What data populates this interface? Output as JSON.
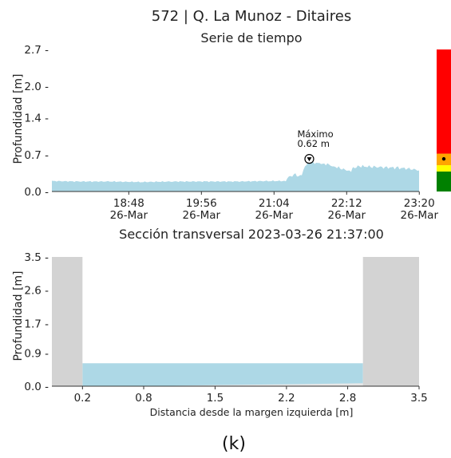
{
  "caption": "(k)",
  "chart_data": [
    {
      "type": "area",
      "title": "572 | Q. La Munoz - Ditaires",
      "subtitle": "Serie de tiempo",
      "xlabel": "",
      "ylabel": "Profundidad [m]",
      "ylim": [
        0,
        2.7
      ],
      "yticks": [
        0.0,
        0.7,
        1.4,
        2.0,
        2.7
      ],
      "ytick_labels": [
        "0.0",
        "0.7",
        "1.4",
        "2.0",
        "2.7"
      ],
      "xlim": [
        17.6,
        23.33
      ],
      "xticks": [
        {
          "value": 18.8,
          "time": "18:48",
          "date": "26-Mar"
        },
        {
          "value": 19.9333,
          "time": "19:56",
          "date": "26-Mar"
        },
        {
          "value": 21.0667,
          "time": "21:04",
          "date": "26-Mar"
        },
        {
          "value": 22.2,
          "time": "22:12",
          "date": "26-Mar"
        },
        {
          "value": 23.3333,
          "time": "23:20",
          "date": "26-Mar"
        }
      ],
      "fill_color": "#add8e6",
      "x": [
        17.6,
        18.0,
        18.5,
        19.0,
        19.5,
        20.0,
        20.5,
        21.0,
        21.25,
        21.3,
        21.4,
        21.45,
        21.5,
        21.55,
        21.6167,
        21.7,
        21.8,
        21.9,
        22.0,
        22.1,
        22.2,
        22.27,
        22.3,
        22.4,
        22.6,
        22.8,
        23.0,
        23.2,
        23.33
      ],
      "y": [
        0.2,
        0.19,
        0.19,
        0.18,
        0.19,
        0.19,
        0.19,
        0.2,
        0.2,
        0.28,
        0.33,
        0.3,
        0.32,
        0.45,
        0.62,
        0.55,
        0.52,
        0.52,
        0.48,
        0.44,
        0.4,
        0.37,
        0.45,
        0.48,
        0.47,
        0.46,
        0.45,
        0.43,
        0.4
      ],
      "annotation": {
        "label": "Máximo",
        "value_label": "0.62 m",
        "x": 21.6167,
        "y": 0.62
      },
      "status_bar": {
        "bands": [
          {
            "color": "#008000",
            "from": 0.0,
            "to": 0.38
          },
          {
            "color": "#ffff00",
            "from": 0.38,
            "to": 0.5
          },
          {
            "color": "#ffa500",
            "from": 0.5,
            "to": 0.72
          },
          {
            "color": "#ff0000",
            "from": 0.72,
            "to": 2.7
          }
        ],
        "marker_value": 0.62
      }
    },
    {
      "type": "area",
      "title": "Sección transversal 2023-03-26 21:37:00",
      "xlabel": "Distancia desde la margen izquierda [m]",
      "ylabel": "Profundidad [m]",
      "ylim": [
        0,
        3.5
      ],
      "yticks": [
        0.0,
        0.9,
        1.7,
        2.6,
        3.5
      ],
      "ytick_labels": [
        "0.0",
        "0.9",
        "1.7",
        "2.6",
        "3.5"
      ],
      "xlim": [
        -0.1,
        3.5
      ],
      "xticks": [
        0.2,
        0.8,
        1.5,
        2.2,
        2.8,
        3.5
      ],
      "xtick_labels": [
        "0.2",
        "0.8",
        "1.5",
        "2.2",
        "2.8",
        "3.5"
      ],
      "water_level": 0.62,
      "water_color": "#add8e6",
      "bank_color": "#d3d3d3",
      "left_bank": {
        "from": -0.1,
        "to": 0.2,
        "height": 3.5
      },
      "right_bank": {
        "from": 2.95,
        "to": 3.5,
        "height": 3.5
      },
      "bed": {
        "x": [
          0.2,
          0.8,
          1.5,
          2.2,
          2.95
        ],
        "y": [
          0.0,
          0.0,
          0.03,
          0.05,
          0.08
        ]
      }
    }
  ]
}
